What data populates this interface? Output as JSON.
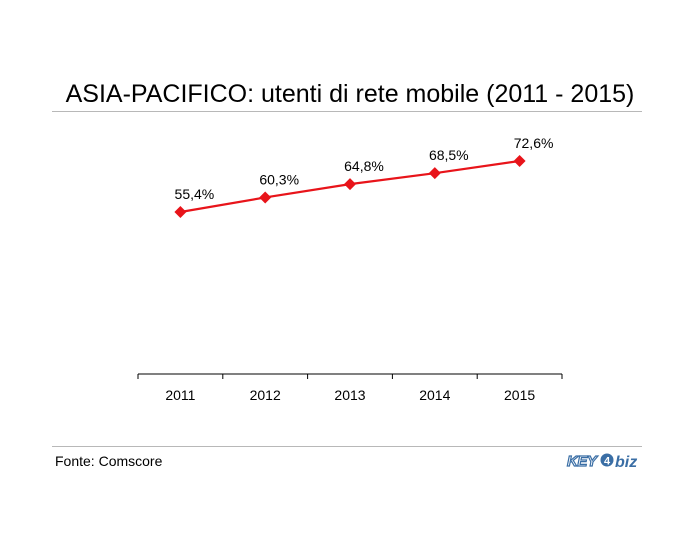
{
  "chart_data": {
    "type": "line",
    "title": "ASIA-PACIFICO: utenti di rete mobile (2011 - 2015)",
    "categories": [
      "2011",
      "2012",
      "2013",
      "2014",
      "2015"
    ],
    "series": [
      {
        "values": [
          55.4,
          60.3,
          64.8,
          68.5,
          72.6
        ],
        "labels": [
          "55,4%",
          "60,3%",
          "64,8%",
          "68,5%",
          "72,6%"
        ],
        "color": "#e8141a",
        "marker": "diamond"
      }
    ],
    "ylim": [
      0,
      100
    ],
    "grid": false,
    "xlabel": "",
    "ylabel": ""
  },
  "source": "Fonte: Comscore",
  "logo": {
    "text": "KEY4biz",
    "color": "#3a6ea5"
  }
}
